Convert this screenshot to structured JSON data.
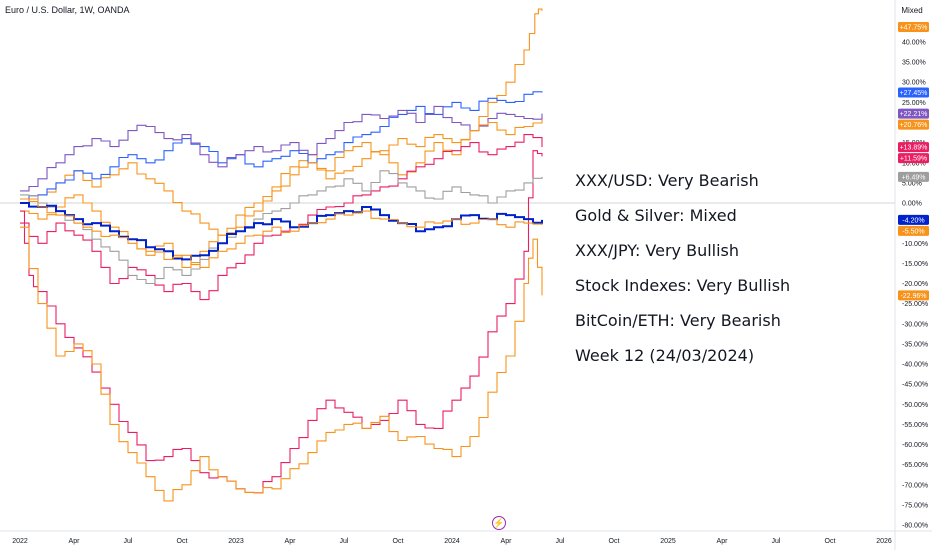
{
  "header": {
    "title": "Euro / U.S. Dollar, 1W, OANDA",
    "scale_mode": "Mixed"
  },
  "annotations": [
    "XXX/USD: Very Bearish",
    "Gold & Silver: Mixed",
    "XXX/JPY: Very Bullish",
    "Stock Indexes: Very Bullish",
    "BitCoin/ETH: Very Bearish",
    "Week 12 (24/03/2024)"
  ],
  "chart_data": {
    "type": "line",
    "title": "Euro / U.S. Dollar, 1W, OANDA",
    "x_ticks": [
      "2022",
      "Apr",
      "Jul",
      "Oct",
      "2023",
      "Apr",
      "Jul",
      "Oct",
      "2024",
      "Apr",
      "Jul",
      "Oct",
      "2025",
      "Apr",
      "Jul",
      "Oct",
      "2026"
    ],
    "y_ticks": [
      "40.00%",
      "35.00%",
      "30.00%",
      "25.00%",
      "15.00%",
      "10.00%",
      "5.00%",
      "0.00%",
      "-10.00%",
      "-15.00%",
      "-20.00%",
      "-25.00%",
      "-30.00%",
      "-35.00%",
      "-40.00%",
      "-45.00%",
      "-50.00%",
      "-55.00%",
      "-60.00%",
      "-65.00%",
      "-70.00%",
      "-75.00%",
      "-80.00%"
    ],
    "y_tick_values": [
      40,
      35,
      30,
      25,
      15,
      10,
      5,
      0,
      -10,
      -15,
      -20,
      -25,
      -30,
      -35,
      -40,
      -45,
      -50,
      -55,
      -60,
      -65,
      -70,
      -75,
      -80
    ],
    "ylim": [
      -82,
      50
    ],
    "x_range_months": [
      0,
      48
    ],
    "grid": false,
    "series": [
      {
        "color": "#f7931a",
        "last_label": "+47.75%",
        "last_value": 47.75,
        "points": [
          [
            0,
            0
          ],
          [
            1,
            2
          ],
          [
            2,
            5
          ],
          [
            3,
            8
          ],
          [
            4,
            4
          ],
          [
            5,
            7
          ],
          [
            6,
            10
          ],
          [
            7,
            6
          ],
          [
            8,
            3
          ],
          [
            9,
            -2
          ],
          [
            10,
            -5
          ],
          [
            11,
            -8
          ],
          [
            12,
            -3
          ],
          [
            13,
            0
          ],
          [
            14,
            4
          ],
          [
            15,
            9
          ],
          [
            16,
            12
          ],
          [
            17,
            6
          ],
          [
            18,
            8
          ],
          [
            19,
            11
          ],
          [
            20,
            13
          ],
          [
            21,
            7
          ],
          [
            22,
            10
          ],
          [
            23,
            15
          ],
          [
            24,
            12
          ],
          [
            25,
            18
          ],
          [
            26,
            25
          ],
          [
            27,
            30
          ],
          [
            28,
            38
          ],
          [
            28.6,
            47
          ],
          [
            29,
            47.75
          ]
        ]
      },
      {
        "color": "#2962ff",
        "last_label": "+27.45%",
        "last_value": 27.45,
        "points": [
          [
            0,
            0
          ],
          [
            1,
            2
          ],
          [
            2,
            5
          ],
          [
            3,
            8
          ],
          [
            4,
            6
          ],
          [
            5,
            9
          ],
          [
            6,
            12
          ],
          [
            7,
            10
          ],
          [
            8,
            13
          ],
          [
            9,
            16
          ],
          [
            10,
            14
          ],
          [
            11,
            10
          ],
          [
            12,
            12
          ],
          [
            13,
            9
          ],
          [
            14,
            11
          ],
          [
            15,
            13
          ],
          [
            16,
            10
          ],
          [
            17,
            12
          ],
          [
            18,
            15
          ],
          [
            19,
            17
          ],
          [
            20,
            19
          ],
          [
            21,
            22
          ],
          [
            22,
            24
          ],
          [
            23,
            22
          ],
          [
            24,
            25
          ],
          [
            25,
            23
          ],
          [
            26,
            26
          ],
          [
            27,
            25
          ],
          [
            28,
            27
          ],
          [
            29,
            27.45
          ]
        ]
      },
      {
        "color": "#7e57c2",
        "last_label": "+22.21%",
        "last_value": 22.21,
        "points": [
          [
            0,
            3
          ],
          [
            1,
            6
          ],
          [
            2,
            10
          ],
          [
            3,
            14
          ],
          [
            4,
            16
          ],
          [
            5,
            14
          ],
          [
            6,
            18
          ],
          [
            7,
            19
          ],
          [
            8,
            16
          ],
          [
            9,
            17
          ],
          [
            10,
            12
          ],
          [
            11,
            9
          ],
          [
            12,
            12
          ],
          [
            13,
            14
          ],
          [
            14,
            13
          ],
          [
            15,
            15
          ],
          [
            16,
            12
          ],
          [
            17,
            16
          ],
          [
            18,
            20
          ],
          [
            19,
            22
          ],
          [
            20,
            21
          ],
          [
            21,
            23
          ],
          [
            22,
            20
          ],
          [
            23,
            24
          ],
          [
            24,
            20
          ],
          [
            25,
            18
          ],
          [
            26,
            21
          ],
          [
            27,
            22
          ],
          [
            28,
            21
          ],
          [
            29,
            22.21
          ]
        ]
      },
      {
        "color": "#f7931a",
        "last_label": "+20.76%",
        "last_value": 20.76,
        "points": [
          [
            0,
            -2
          ],
          [
            1,
            -4
          ],
          [
            2,
            -1
          ],
          [
            3,
            2
          ],
          [
            4,
            -2
          ],
          [
            5,
            -6
          ],
          [
            6,
            -9
          ],
          [
            7,
            -13
          ],
          [
            8,
            -10
          ],
          [
            9,
            -16
          ],
          [
            10,
            -12
          ],
          [
            11,
            -8
          ],
          [
            12,
            -6
          ],
          [
            13,
            -2
          ],
          [
            14,
            3
          ],
          [
            15,
            7
          ],
          [
            16,
            10
          ],
          [
            17,
            8
          ],
          [
            18,
            13
          ],
          [
            19,
            15
          ],
          [
            20,
            12
          ],
          [
            21,
            16
          ],
          [
            22,
            14
          ],
          [
            23,
            17
          ],
          [
            24,
            15
          ],
          [
            25,
            18
          ],
          [
            26,
            20
          ],
          [
            27,
            17
          ],
          [
            28,
            19
          ],
          [
            29,
            20.76
          ]
        ]
      },
      {
        "color": "#e91e63",
        "last_label": "+13.89%",
        "last_value": 13.89,
        "points": [
          [
            0,
            -5
          ],
          [
            1,
            -10
          ],
          [
            2,
            -5
          ],
          [
            3,
            -8
          ],
          [
            4,
            -12
          ],
          [
            5,
            -20
          ],
          [
            6,
            -16
          ],
          [
            7,
            -18
          ],
          [
            8,
            -22
          ],
          [
            9,
            -20
          ],
          [
            10,
            -24
          ],
          [
            11,
            -18
          ],
          [
            12,
            -15
          ],
          [
            13,
            -10
          ],
          [
            14,
            -8
          ],
          [
            15,
            -6
          ],
          [
            16,
            -3
          ],
          [
            17,
            -1
          ],
          [
            18,
            0
          ],
          [
            19,
            2
          ],
          [
            20,
            4
          ],
          [
            21,
            6
          ],
          [
            22,
            9
          ],
          [
            23,
            11
          ],
          [
            24,
            13
          ],
          [
            25,
            15
          ],
          [
            26,
            12
          ],
          [
            27,
            14
          ],
          [
            28,
            17
          ],
          [
            29,
            13.89
          ]
        ]
      },
      {
        "color": "#e91e63",
        "last_label": "+11.59%",
        "last_value": 11.59,
        "points": [
          [
            0,
            -2
          ],
          [
            0.5,
            -18
          ],
          [
            1,
            -22
          ],
          [
            2,
            -30
          ],
          [
            3,
            -36
          ],
          [
            4,
            -42
          ],
          [
            5,
            -50
          ],
          [
            6,
            -57
          ],
          [
            7,
            -64
          ],
          [
            8,
            -63
          ],
          [
            9,
            -61
          ],
          [
            10,
            -67
          ],
          [
            11,
            -68
          ],
          [
            12,
            -71
          ],
          [
            13,
            -72
          ],
          [
            14,
            -68
          ],
          [
            15,
            -61
          ],
          [
            16,
            -54
          ],
          [
            17,
            -49
          ],
          [
            18,
            -52
          ],
          [
            19,
            -56
          ],
          [
            20,
            -54
          ],
          [
            21,
            -49
          ],
          [
            22,
            -55
          ],
          [
            23,
            -56
          ],
          [
            24,
            -49
          ],
          [
            25,
            -43
          ],
          [
            26,
            -32
          ],
          [
            27,
            -25
          ],
          [
            28,
            -12
          ],
          [
            28.5,
            13
          ],
          [
            29,
            11.59
          ]
        ]
      },
      {
        "color": "#9e9e9e",
        "last_label": "+6.49%",
        "last_value": 6.49,
        "points": [
          [
            0,
            2
          ],
          [
            1,
            0
          ],
          [
            2,
            -2
          ],
          [
            3,
            -5
          ],
          [
            4,
            -9
          ],
          [
            5,
            -12
          ],
          [
            6,
            -18
          ],
          [
            7,
            -20
          ],
          [
            8,
            -16
          ],
          [
            9,
            -18
          ],
          [
            10,
            -14
          ],
          [
            11,
            -10
          ],
          [
            12,
            -7
          ],
          [
            13,
            -4
          ],
          [
            14,
            -2
          ],
          [
            15,
            0
          ],
          [
            16,
            2
          ],
          [
            17,
            4
          ],
          [
            18,
            6
          ],
          [
            19,
            3
          ],
          [
            20,
            8
          ],
          [
            21,
            5
          ],
          [
            22,
            3
          ],
          [
            23,
            1
          ],
          [
            24,
            4
          ],
          [
            25,
            2
          ],
          [
            26,
            0
          ],
          [
            27,
            3
          ],
          [
            28,
            5
          ],
          [
            29,
            6.49
          ]
        ]
      },
      {
        "color": "#0022cc",
        "last_label": "-4.20%",
        "last_value": -4.2,
        "thick": true,
        "points": [
          [
            0,
            0
          ],
          [
            1,
            -1
          ],
          [
            2,
            -2
          ],
          [
            3,
            -4
          ],
          [
            4,
            -5
          ],
          [
            5,
            -7
          ],
          [
            6,
            -9
          ],
          [
            7,
            -11
          ],
          [
            8,
            -12
          ],
          [
            9,
            -14
          ],
          [
            10,
            -13
          ],
          [
            11,
            -10
          ],
          [
            12,
            -7
          ],
          [
            13,
            -5
          ],
          [
            14,
            -4
          ],
          [
            15,
            -6
          ],
          [
            16,
            -5
          ],
          [
            17,
            -3
          ],
          [
            18,
            -2
          ],
          [
            19,
            -1
          ],
          [
            20,
            -3
          ],
          [
            21,
            -5
          ],
          [
            22,
            -7
          ],
          [
            23,
            -6
          ],
          [
            24,
            -4
          ],
          [
            25,
            -3
          ],
          [
            26,
            -4
          ],
          [
            27,
            -3
          ],
          [
            28,
            -4
          ],
          [
            29,
            -4.2
          ]
        ]
      },
      {
        "color": "#f7931a",
        "last_label": "-5.50%",
        "last_value": -5.5,
        "points": [
          [
            0,
            1
          ],
          [
            1,
            -1
          ],
          [
            2,
            -3
          ],
          [
            3,
            -5
          ],
          [
            4,
            -7
          ],
          [
            5,
            -8
          ],
          [
            6,
            -10
          ],
          [
            7,
            -12
          ],
          [
            8,
            -14
          ],
          [
            9,
            -13
          ],
          [
            10,
            -16
          ],
          [
            11,
            -12
          ],
          [
            12,
            -10
          ],
          [
            13,
            -8
          ],
          [
            14,
            -6
          ],
          [
            15,
            -7
          ],
          [
            16,
            -5
          ],
          [
            17,
            -4
          ],
          [
            18,
            -3
          ],
          [
            19,
            -2
          ],
          [
            20,
            -4
          ],
          [
            21,
            -5
          ],
          [
            22,
            -6
          ],
          [
            23,
            -5
          ],
          [
            24,
            -4
          ],
          [
            25,
            -5
          ],
          [
            26,
            -4
          ],
          [
            27,
            -6
          ],
          [
            28,
            -5
          ],
          [
            29,
            -5.5
          ]
        ]
      },
      {
        "color": "#f7931a",
        "last_label": "-22.96%",
        "last_value": -22.96,
        "points": [
          [
            0,
            -6
          ],
          [
            1,
            -25
          ],
          [
            2,
            -38
          ],
          [
            3,
            -35
          ],
          [
            4,
            -40
          ],
          [
            5,
            -55
          ],
          [
            6,
            -62
          ],
          [
            7,
            -68
          ],
          [
            8,
            -74
          ],
          [
            9,
            -70
          ],
          [
            10,
            -63
          ],
          [
            11,
            -68
          ],
          [
            12,
            -71
          ],
          [
            13,
            -72
          ],
          [
            14,
            -71
          ],
          [
            15,
            -66
          ],
          [
            16,
            -62
          ],
          [
            17,
            -57
          ],
          [
            18,
            -55
          ],
          [
            19,
            -56
          ],
          [
            20,
            -53
          ],
          [
            21,
            -59
          ],
          [
            22,
            -58
          ],
          [
            23,
            -61
          ],
          [
            24,
            -63
          ],
          [
            25,
            -58
          ],
          [
            26,
            -47
          ],
          [
            27,
            -38
          ],
          [
            28,
            -20
          ],
          [
            28.5,
            -9
          ],
          [
            29,
            -22.96
          ]
        ]
      }
    ]
  }
}
